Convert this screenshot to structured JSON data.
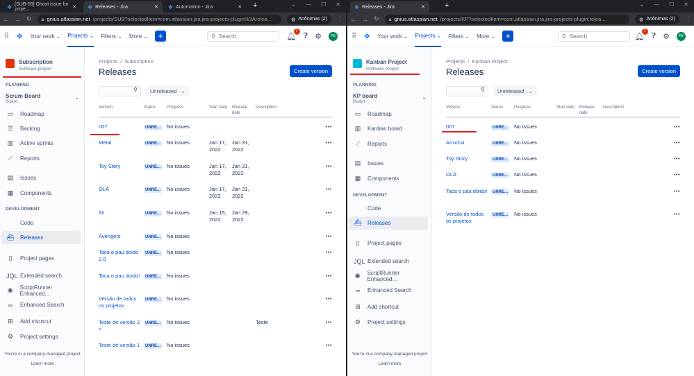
{
  "colors": {
    "accent": "#0052cc",
    "annotation": "#e02020",
    "status_bg": "#deebff"
  },
  "windows": [
    {
      "tabs": [
        {
          "label": "[SUB-59] Ghost issue for proje...",
          "icon": "jira-icon"
        },
        {
          "label": "Releases - Jira",
          "icon": "jira-icon",
          "active": true
        },
        {
          "label": "Automation - Jira",
          "icon": "jira-icon"
        }
      ],
      "url_host": "gnius.atlassian.net",
      "url_path": "/projects/SUB?selectedItem=com.atlassian.jira.jira-projects-plugin%3Arelea...",
      "profile": "Anônimas (2)",
      "nav": {
        "your_work": "Your work",
        "projects": "Projects",
        "filters": "Filters",
        "more": "More",
        "search_placeholder": "Search",
        "notifications": "7",
        "avatar": "FE"
      },
      "project": {
        "name": "Subscription",
        "type": "Software project",
        "logo_color": "#de350b"
      },
      "planning": "PLANNING",
      "board": {
        "name": "Scrum Board",
        "type": "Board"
      },
      "development": "DEVELOPMENT",
      "sidebar": [
        {
          "label": "Roadmap",
          "icon": "roadmap-icon"
        },
        {
          "label": "Backlog",
          "icon": "backlog-icon"
        },
        {
          "label": "Active sprints",
          "icon": "board-icon"
        },
        {
          "label": "Reports",
          "icon": "reports-icon"
        },
        {
          "label": "Issues",
          "icon": "issues-icon"
        },
        {
          "label": "Components",
          "icon": "components-icon"
        },
        {
          "label": "Code",
          "icon": "code-icon"
        },
        {
          "label": "Releases",
          "icon": "releases-icon",
          "selected": true
        },
        {
          "label": "Project pages",
          "icon": "pages-icon"
        },
        {
          "label": "Extended search",
          "icon": "jql-icon"
        },
        {
          "label": "ScriptRunner Enhanced...",
          "icon": "scriptrunner-icon"
        },
        {
          "label": "Enhanced Search",
          "icon": "binoculars-icon"
        },
        {
          "label": "Add shortcut",
          "icon": "add-shortcut-icon"
        },
        {
          "label": "Project settings",
          "icon": "gear-icon"
        }
      ],
      "footer": {
        "text": "You're in a company-managed project",
        "link": "Learn more"
      },
      "breadcrumb": [
        "Projects",
        "Subscription"
      ],
      "title": "Releases",
      "create_version": "Create version",
      "filter_value": "Unreleased",
      "columns": {
        "version": "Version",
        "status": "Status",
        "progress": "Progress",
        "start": "Start date",
        "release": "Release date",
        "description": "Description"
      },
      "rows": [
        {
          "version": "007",
          "status": "UNRE...",
          "progress": "No issues",
          "start": "",
          "release": "",
          "description": ""
        },
        {
          "version": "Metal",
          "status": "UNRE...",
          "progress": "No issues",
          "start": "Jan 17, 2022",
          "release": "Jan 31, 2022",
          "description": ""
        },
        {
          "version": "Toy Story",
          "status": "UNRE...",
          "progress": "No issues",
          "start": "Jan 17, 2022",
          "release": "Jan 31, 2022",
          "description": ""
        },
        {
          "version": "OLÁ",
          "status": "UNRE...",
          "progress": "No issues",
          "start": "Jan 17, 2022",
          "release": "Jan 31, 2022",
          "description": ""
        },
        {
          "version": "Ih!",
          "status": "UNRE...",
          "progress": "No issues",
          "start": "Jan 15, 2022",
          "release": "Jan 29, 2022",
          "description": ""
        },
        {
          "version": "Avengers",
          "status": "UNRE...",
          "progress": "No issues",
          "start": "",
          "release": "",
          "description": ""
        },
        {
          "version": "Taca o pau doido 2.0",
          "status": "UNRE...",
          "progress": "No issues",
          "start": "",
          "release": "",
          "description": ""
        },
        {
          "version": "Taca o pau doido!",
          "status": "UNRE...",
          "progress": "No issues",
          "start": "",
          "release": "",
          "description": ""
        },
        {
          "version": "Versão de todos os projetos",
          "status": "UNRE...",
          "progress": "No issues",
          "start": "",
          "release": "",
          "description": ""
        },
        {
          "version": "Teste de versão 2 >",
          "status": "UNRE...",
          "progress": "No issues",
          "start": "",
          "release": "",
          "description": "Teste"
        },
        {
          "version": "Teste de versão 1",
          "status": "UNRE...",
          "progress": "No issues",
          "start": "",
          "release": "",
          "description": ""
        }
      ]
    },
    {
      "tabs": [
        {
          "label": "Releases - Jira",
          "icon": "jira-icon",
          "active": true
        }
      ],
      "url_host": "gnius.atlassian.net",
      "url_path": "/projects/KP?selectedItem=com.atlassian.jira.jira-projects-plugin:relea...",
      "profile": "Anônimas (2)",
      "nav": {
        "your_work": "Your work",
        "projects": "Projects",
        "filters": "Filters",
        "more": "More",
        "search_placeholder": "Search",
        "notifications": "7",
        "avatar": "FE"
      },
      "project": {
        "name": "Kanban Project",
        "type": "Software project",
        "logo_color": "#00b8d9"
      },
      "planning": "PLANNING",
      "board": {
        "name": "KP board",
        "type": "Board"
      },
      "development": "DEVELOPMENT",
      "sidebar": [
        {
          "label": "Roadmap",
          "icon": "roadmap-icon"
        },
        {
          "label": "Kanban board",
          "icon": "board-icon"
        },
        {
          "label": "Reports",
          "icon": "reports-icon"
        },
        {
          "label": "Issues",
          "icon": "issues-icon"
        },
        {
          "label": "Components",
          "icon": "components-icon"
        },
        {
          "label": "Code",
          "icon": "code-icon"
        },
        {
          "label": "Releases",
          "icon": "releases-icon",
          "selected": true
        },
        {
          "label": "Project pages",
          "icon": "pages-icon"
        },
        {
          "label": "Extended search",
          "icon": "jql-icon"
        },
        {
          "label": "ScriptRunner Enhanced...",
          "icon": "scriptrunner-icon"
        },
        {
          "label": "Enhanced Search",
          "icon": "binoculars-icon"
        },
        {
          "label": "Add shortcut",
          "icon": "add-shortcut-icon"
        },
        {
          "label": "Project settings",
          "icon": "gear-icon"
        }
      ],
      "footer": {
        "text": "You're in a company-managed project",
        "link": "Learn more"
      },
      "breadcrumb": [
        "Projects",
        "Kanban Project"
      ],
      "title": "Releases",
      "create_version": "Create version",
      "filter_value": "Unreleased",
      "columns": {
        "version": "Version",
        "status": "Status",
        "progress": "Progress",
        "start": "Start date",
        "release": "Release date",
        "description": "Description"
      },
      "rows": [
        {
          "version": "007",
          "status": "UNRE...",
          "progress": "No issues",
          "start": "",
          "release": "",
          "description": ""
        },
        {
          "version": "Arrocha",
          "status": "UNRE...",
          "progress": "No issues",
          "start": "",
          "release": "",
          "description": ""
        },
        {
          "version": "Toy Story",
          "status": "UNRE...",
          "progress": "No issues",
          "start": "",
          "release": "",
          "description": ""
        },
        {
          "version": "OLÁ",
          "status": "UNRE...",
          "progress": "No issues",
          "start": "",
          "release": "",
          "description": ""
        },
        {
          "version": "Taca o pau doido!",
          "status": "UNRE...",
          "progress": "No issues",
          "start": "",
          "release": "",
          "description": ""
        },
        {
          "version": "Versão de todos os projetos",
          "status": "UNRE...",
          "progress": "No issues",
          "start": "",
          "release": "",
          "description": ""
        }
      ]
    }
  ]
}
